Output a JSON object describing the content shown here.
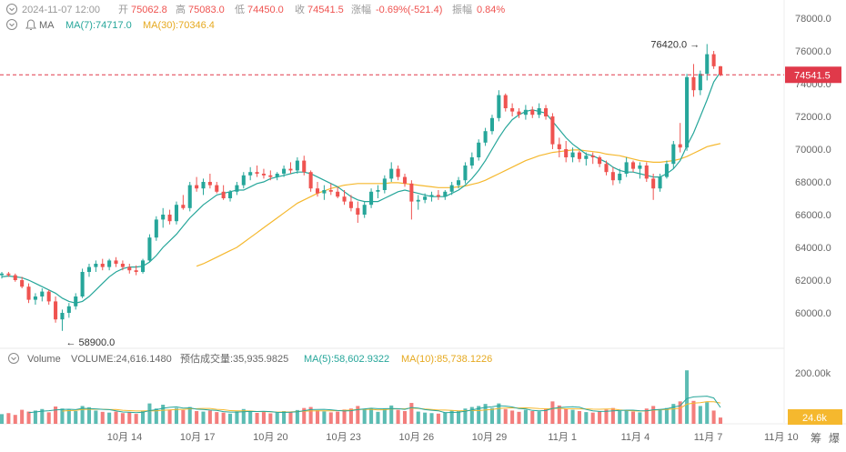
{
  "header": {
    "timestamp": "2024-11-07 12:00",
    "open_label": "开",
    "open": "75062.8",
    "high_label": "高",
    "high": "75083.0",
    "low_label": "低",
    "low": "74450.0",
    "close_label": "收",
    "close": "74541.5",
    "change_label": "涨幅",
    "change": "-0.69%(-521.4)",
    "amplitude_label": "振幅",
    "amplitude": "0.84%"
  },
  "ma_legend": {
    "label": "MA",
    "ma7": "MA(7):74717.0",
    "ma30": "MA(30):70346.4"
  },
  "volume_legend": {
    "label": "Volume",
    "volume": "VOLUME:24,616.1480",
    "estimate": "预估成交量:35,935.9825",
    "ma5": "MA(5):58,602.9322",
    "ma10": "MA(10):85,738.1226"
  },
  "price_tag": "74541.5",
  "volume_tag": "24.6k",
  "footer_buttons": [
    "筹",
    "爆"
  ],
  "colors": {
    "up": "#26a69a",
    "down": "#ef5350",
    "ma7": "#26a69a",
    "ma30": "#f5b82e",
    "price_line": "#e0394a",
    "text": "#666666"
  },
  "chart_data": {
    "type": "candlestick",
    "price_axis": {
      "ticks": [
        60000,
        62000,
        64000,
        66000,
        68000,
        70000,
        72000,
        74000,
        76000,
        78000
      ],
      "tick_labels": [
        "60000.0",
        "62000.0",
        "64000.0",
        "66000.0",
        "68000.0",
        "70000.0",
        "72000.0",
        "74000.0",
        "76000.0",
        "78000.0"
      ]
    },
    "volume_axis": {
      "ticks": [
        200000
      ],
      "tick_labels": [
        "200.00k"
      ]
    },
    "x_axis": {
      "tick_labels": [
        "10月 14",
        "10月 17",
        "10月 20",
        "10月 23",
        "10月 26",
        "10月 29",
        "11月 1",
        "11月 4",
        "11月 7",
        "11月 10"
      ]
    },
    "annotations": {
      "high": "76420.0",
      "low": "58900.0"
    },
    "candles": [
      [
        62300,
        62500,
        62100,
        62400
      ],
      [
        62400,
        62500,
        62200,
        62300
      ],
      [
        62300,
        62400,
        61900,
        62000
      ],
      [
        62000,
        62200,
        61500,
        61600
      ],
      [
        61600,
        61800,
        60600,
        60800
      ],
      [
        60800,
        61200,
        60500,
        61000
      ],
      [
        61000,
        61500,
        60700,
        61300
      ],
      [
        61300,
        61400,
        60500,
        60700
      ],
      [
        60700,
        61000,
        59400,
        59600
      ],
      [
        59600,
        60200,
        58900,
        60000
      ],
      [
        60000,
        60600,
        59700,
        60400
      ],
      [
        60400,
        61200,
        60200,
        61000
      ],
      [
        61000,
        62700,
        60900,
        62500
      ],
      [
        62500,
        63000,
        62200,
        62800
      ],
      [
        62800,
        63200,
        62500,
        63000
      ],
      [
        63000,
        63300,
        62600,
        62800
      ],
      [
        62800,
        63300,
        62600,
        63200
      ],
      [
        63200,
        63400,
        62800,
        63000
      ],
      [
        63000,
        63200,
        62600,
        62800
      ],
      [
        62800,
        63000,
        62400,
        62600
      ],
      [
        62600,
        62900,
        62300,
        62500
      ],
      [
        62500,
        63300,
        62400,
        63200
      ],
      [
        63200,
        64800,
        63100,
        64600
      ],
      [
        64600,
        65900,
        64400,
        65700
      ],
      [
        65700,
        66400,
        65200,
        66000
      ],
      [
        66000,
        66300,
        65400,
        65600
      ],
      [
        65600,
        66800,
        65400,
        66600
      ],
      [
        66600,
        67200,
        66300,
        66400
      ],
      [
        66400,
        68000,
        66200,
        67800
      ],
      [
        67800,
        68300,
        67400,
        67600
      ],
      [
        67600,
        68200,
        67200,
        68000
      ],
      [
        68000,
        68500,
        67600,
        67800
      ],
      [
        67800,
        68000,
        67300,
        67400
      ],
      [
        67400,
        67800,
        66900,
        67000
      ],
      [
        67000,
        67500,
        66800,
        67400
      ],
      [
        67400,
        68000,
        67200,
        67800
      ],
      [
        67800,
        68600,
        67600,
        68400
      ],
      [
        68400,
        68900,
        68100,
        68600
      ],
      [
        68600,
        69000,
        68300,
        68500
      ],
      [
        68500,
        68800,
        68200,
        68400
      ],
      [
        68400,
        68700,
        68100,
        68300
      ],
      [
        68300,
        68600,
        68100,
        68500
      ],
      [
        68500,
        69000,
        68300,
        68800
      ],
      [
        68800,
        69200,
        68500,
        68700
      ],
      [
        68700,
        69500,
        68500,
        69300
      ],
      [
        69300,
        69600,
        68400,
        68600
      ],
      [
        68600,
        68700,
        67400,
        67600
      ],
      [
        67600,
        68000,
        67100,
        67300
      ],
      [
        67300,
        67800,
        66900,
        67500
      ],
      [
        67500,
        67900,
        67200,
        67400
      ],
      [
        67400,
        67700,
        67000,
        67100
      ],
      [
        67100,
        67500,
        66600,
        66800
      ],
      [
        66800,
        67200,
        66200,
        66400
      ],
      [
        66400,
        66800,
        65500,
        66000
      ],
      [
        66000,
        66800,
        65800,
        66600
      ],
      [
        66600,
        67600,
        66400,
        67400
      ],
      [
        67400,
        67800,
        67000,
        67500
      ],
      [
        67500,
        68400,
        67300,
        68200
      ],
      [
        68200,
        69200,
        68000,
        68800
      ],
      [
        68800,
        69000,
        68100,
        68300
      ],
      [
        68300,
        68500,
        67700,
        67900
      ],
      [
        67900,
        68100,
        65700,
        66800
      ],
      [
        66800,
        67200,
        66300,
        66900
      ],
      [
        66900,
        67300,
        66700,
        67100
      ],
      [
        67100,
        67400,
        66800,
        67200
      ],
      [
        67200,
        67500,
        66900,
        67100
      ],
      [
        67100,
        67500,
        66900,
        67400
      ],
      [
        67400,
        68000,
        67200,
        67800
      ],
      [
        67800,
        68300,
        67600,
        68100
      ],
      [
        68100,
        69200,
        67900,
        69000
      ],
      [
        69000,
        69800,
        68800,
        69500
      ],
      [
        69500,
        70600,
        69300,
        70400
      ],
      [
        70400,
        71300,
        70200,
        71100
      ],
      [
        71100,
        72100,
        70900,
        71900
      ],
      [
        71900,
        73600,
        71700,
        73300
      ],
      [
        73300,
        73400,
        72300,
        72500
      ],
      [
        72500,
        72800,
        72000,
        72300
      ],
      [
        72300,
        72500,
        71900,
        72100
      ],
      [
        72100,
        72700,
        71800,
        72400
      ],
      [
        72400,
        72600,
        71900,
        72100
      ],
      [
        72100,
        72800,
        71900,
        72500
      ],
      [
        72500,
        72700,
        71800,
        72000
      ],
      [
        72000,
        72200,
        70000,
        70300
      ],
      [
        70300,
        70700,
        69500,
        70000
      ],
      [
        70000,
        70500,
        69200,
        69500
      ],
      [
        69500,
        70100,
        69200,
        69800
      ],
      [
        69800,
        69900,
        69200,
        69400
      ],
      [
        69400,
        69800,
        69000,
        69600
      ],
      [
        69600,
        69800,
        69100,
        69500
      ],
      [
        69500,
        69600,
        68900,
        69100
      ],
      [
        69100,
        69300,
        68400,
        68600
      ],
      [
        68600,
        68900,
        67800,
        68100
      ],
      [
        68100,
        68800,
        67900,
        68500
      ],
      [
        68500,
        69500,
        68300,
        69200
      ],
      [
        69200,
        69300,
        68600,
        68800
      ],
      [
        68800,
        69200,
        68200,
        69000
      ],
      [
        69000,
        69200,
        68000,
        68200
      ],
      [
        68200,
        68500,
        66900,
        67600
      ],
      [
        67600,
        68500,
        67400,
        68300
      ],
      [
        68300,
        69300,
        68200,
        69100
      ],
      [
        69100,
        70500,
        68800,
        70300
      ],
      [
        70300,
        71600,
        69800,
        70100
      ],
      [
        70100,
        74600,
        69900,
        74400
      ],
      [
        74400,
        75200,
        73200,
        73600
      ],
      [
        73600,
        74800,
        73300,
        74600
      ],
      [
        74600,
        76420,
        74200,
        75800
      ],
      [
        75800,
        76000,
        74900,
        75062
      ],
      [
        75062,
        75083,
        74450,
        74541
      ]
    ],
    "volume": [
      38000,
      42000,
      35000,
      55000,
      48000,
      52000,
      58000,
      45000,
      68000,
      60000,
      55000,
      50000,
      70000,
      65000,
      52000,
      47000,
      44000,
      48000,
      42000,
      46000,
      39000,
      52000,
      80000,
      60000,
      75000,
      56000,
      62000,
      54000,
      66000,
      50000,
      48000,
      52000,
      46000,
      44000,
      40000,
      49000,
      58000,
      51000,
      43000,
      46000,
      41000,
      44000,
      50000,
      47000,
      54000,
      62000,
      66000,
      53000,
      49000,
      45000,
      48000,
      56000,
      60000,
      70000,
      58000,
      62000,
      47000,
      60000,
      72000,
      55000,
      50000,
      82000,
      48000,
      44000,
      42000,
      40000,
      45000,
      52000,
      50000,
      60000,
      66000,
      70000,
      78000,
      62000,
      80000,
      58000,
      52000,
      47000,
      55000,
      50000,
      49000,
      60000,
      88000,
      72000,
      60000,
      55000,
      50000,
      46000,
      44000,
      48000,
      56000,
      62000,
      50000,
      52000,
      48000,
      45000,
      60000,
      70000,
      58000,
      62000,
      78000,
      88000,
      210000,
      90000,
      70000,
      85000,
      52000,
      24616
    ],
    "ma7": [
      62200,
      62250,
      62200,
      62150,
      62000,
      61800,
      61600,
      61400,
      61200,
      60900,
      60700,
      60600,
      60700,
      61000,
      61400,
      61800,
      62200,
      62500,
      62700,
      62800,
      62800,
      62850,
      63100,
      63500,
      64000,
      64400,
      64800,
      65300,
      65800,
      66200,
      66600,
      66900,
      67200,
      67300,
      67400,
      67500,
      67500,
      67700,
      67900,
      68000,
      68200,
      68300,
      68400,
      68500,
      68600,
      68600,
      68500,
      68300,
      68100,
      67900,
      67700,
      67400,
      67100,
      66900,
      66800,
      66800,
      66800,
      67000,
      67200,
      67400,
      67500,
      67400,
      67300,
      67200,
      67100,
      67100,
      67100,
      67300,
      67500,
      67800,
      68200,
      68700,
      69300,
      70000,
      70700,
      71300,
      71800,
      72100,
      72300,
      72400,
      72300,
      72200,
      71700,
      71200,
      70700,
      70300,
      70000,
      69700,
      69600,
      69400,
      69200,
      68900,
      68700,
      68600,
      68600,
      68500,
      68400,
      68300,
      68300,
      68500,
      68800,
      69300,
      70200,
      71000,
      72000,
      73000,
      74100,
      74717
    ],
    "ma30": [
      null,
      null,
      null,
      null,
      null,
      null,
      null,
      null,
      null,
      null,
      null,
      null,
      null,
      null,
      null,
      null,
      null,
      null,
      null,
      null,
      null,
      null,
      null,
      null,
      null,
      null,
      null,
      null,
      null,
      62850,
      63000,
      63200,
      63400,
      63600,
      63800,
      64000,
      64300,
      64600,
      64900,
      65200,
      65500,
      65800,
      66100,
      66400,
      66700,
      66900,
      67100,
      67300,
      67450,
      67600,
      67700,
      67800,
      67850,
      67900,
      67900,
      67900,
      67900,
      67900,
      67950,
      67950,
      67900,
      67850,
      67800,
      67750,
      67700,
      67650,
      67650,
      67650,
      67700,
      67750,
      67850,
      67950,
      68100,
      68300,
      68500,
      68700,
      68900,
      69100,
      69300,
      69450,
      69600,
      69700,
      69800,
      69850,
      69900,
      69950,
      69950,
      69900,
      69850,
      69800,
      69700,
      69650,
      69600,
      69500,
      69400,
      69300,
      69250,
      69200,
      69200,
      69250,
      69300,
      69400,
      69550,
      69750,
      69950,
      70150,
      70250,
      70346
    ]
  }
}
